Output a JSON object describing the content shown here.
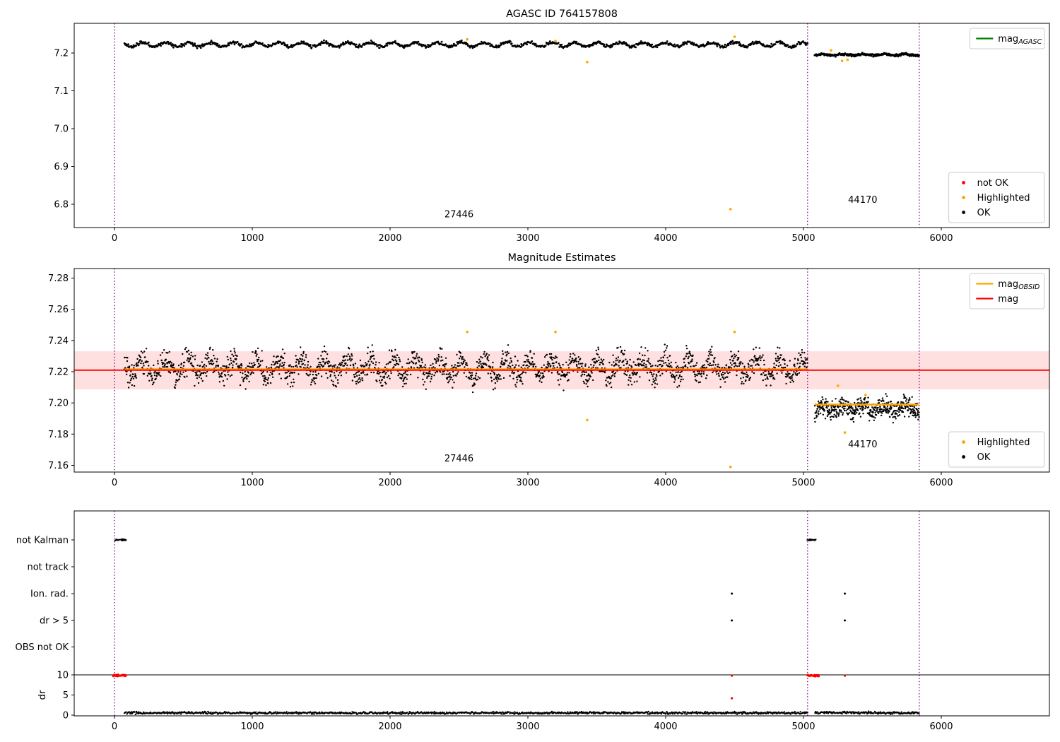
{
  "figure": {
    "background": "#ffffff"
  },
  "chart_data": [
    {
      "id": "agasc-mag",
      "type": "scatter",
      "title": "AGASC ID 764157808",
      "xlim": [
        -292,
        6785
      ],
      "ylim": [
        6.738,
        7.279
      ],
      "xticks": [
        0,
        1000,
        2000,
        3000,
        4000,
        5000,
        6000
      ],
      "yticks": [
        6.8,
        6.9,
        7.0,
        7.1,
        7.2
      ],
      "colors": {
        "ok": "#000000",
        "highlighted": "#ffa500",
        "not_ok": "#ff0000",
        "agasc_line": "#008000",
        "vline": "#800080"
      },
      "vlines": {
        "x": [
          0,
          5030,
          5840
        ],
        "color": "#800080",
        "style": "dotted"
      },
      "ok_segments": [
        {
          "obsid": "27446",
          "x_start": 70,
          "x_end": 5030,
          "n": 1050,
          "y_mean": 7.2225,
          "wave_amp": 0.0055,
          "wave_period": 165,
          "spread": 0.0065,
          "r": 1.4,
          "seed": 11
        },
        {
          "obsid": "44170",
          "x_start": 5080,
          "x_end": 5840,
          "n": 280,
          "y_mean": 7.1955,
          "wave_amp": 0.002,
          "wave_period": 150,
          "spread": 0.005,
          "r": 1.4,
          "seed": 12
        }
      ],
      "highlighted_points": [
        [
          2560,
          7.236
        ],
        [
          3200,
          7.232
        ],
        [
          3430,
          7.176
        ],
        [
          4470,
          6.787
        ],
        [
          4500,
          7.243
        ],
        [
          5200,
          7.207
        ],
        [
          5280,
          7.179
        ],
        [
          5320,
          7.182
        ]
      ],
      "annotations": [
        {
          "x": 2500,
          "y": 6.765,
          "text": "27446"
        },
        {
          "x": 5430,
          "y": 6.804,
          "text": "44170"
        }
      ],
      "legend_upper": {
        "items": [
          {
            "marker": "line",
            "color": "#008000",
            "label": "mag",
            "sub": "AGASC"
          }
        ]
      },
      "legend_lower": {
        "items": [
          {
            "marker": "dot",
            "color": "#ff0000",
            "label": "not OK"
          },
          {
            "marker": "dot",
            "color": "#ffa500",
            "label": "Highlighted"
          },
          {
            "marker": "dot",
            "color": "#000000",
            "label": "OK"
          }
        ]
      }
    },
    {
      "id": "mag-estimates",
      "type": "scatter",
      "title": "Magnitude Estimates",
      "xlim": [
        -292,
        6785
      ],
      "ylim": [
        7.156,
        7.286
      ],
      "xticks": [
        0,
        1000,
        2000,
        3000,
        4000,
        5000,
        6000
      ],
      "yticks": [
        7.16,
        7.18,
        7.2,
        7.22,
        7.24,
        7.26,
        7.28
      ],
      "colors": {
        "ok": "#000000",
        "highlighted": "#ffa500",
        "mag": "#ff0000",
        "obsid": "#ffa500",
        "vline": "#800080"
      },
      "vlines": {
        "x": [
          0,
          5030,
          5840
        ],
        "color": "#800080",
        "style": "dotted"
      },
      "mag_line": 7.221,
      "band": {
        "y_low": 7.2087,
        "y_high": 7.2331,
        "color": "rgba(255,0,0,0.12)"
      },
      "obsid_lines": [
        {
          "obsid": "27446",
          "x_start": 70,
          "x_end": 5030,
          "y": 7.2215
        },
        {
          "obsid": "44170",
          "x_start": 5080,
          "x_end": 5840,
          "y": 7.199
        }
      ],
      "ok_segments": [
        {
          "obsid": "27446",
          "x_start": 70,
          "x_end": 5030,
          "n": 2100,
          "y_mean": 7.2225,
          "wave_amp": 0.005,
          "wave_period": 165,
          "spread": 0.012,
          "r": 1.2,
          "seed": 21
        },
        {
          "obsid": "44170",
          "x_start": 5080,
          "x_end": 5840,
          "n": 480,
          "y_mean": 7.1965,
          "wave_amp": 0.002,
          "wave_period": 150,
          "spread": 0.009,
          "r": 1.2,
          "seed": 22
        }
      ],
      "highlighted_points": [
        [
          2560,
          7.2455
        ],
        [
          3200,
          7.2455
        ],
        [
          3430,
          7.189
        ],
        [
          4470,
          7.159
        ],
        [
          4500,
          7.2455
        ],
        [
          5250,
          7.211
        ],
        [
          5300,
          7.181
        ],
        [
          5450,
          7.205
        ]
      ],
      "annotations": [
        {
          "x": 2500,
          "y": 7.1625,
          "text": "27446"
        },
        {
          "x": 5430,
          "y": 7.1715,
          "text": "44170"
        }
      ],
      "legend_upper": {
        "items": [
          {
            "marker": "line",
            "color": "#ffa500",
            "label": "mag",
            "sub": "OBSID"
          },
          {
            "marker": "line",
            "color": "#ff0000",
            "label": "mag"
          }
        ]
      },
      "legend_lower": {
        "items": [
          {
            "marker": "dot",
            "color": "#ffa500",
            "label": "Highlighted"
          },
          {
            "marker": "dot",
            "color": "#000000",
            "label": "OK"
          }
        ]
      }
    },
    {
      "id": "flags",
      "type": "categorical-scatter",
      "rows": [
        "not Kalman",
        "not track",
        "Ion. rad.",
        "dr > 5",
        "OBS not OK"
      ],
      "dr_axis": {
        "label": "dr",
        "ticks": [
          0,
          5,
          10
        ],
        "hline": 10
      },
      "xticks": [
        0,
        1000,
        2000,
        3000,
        4000,
        5000,
        6000
      ],
      "vlines": {
        "x": [
          0,
          5030,
          5840
        ],
        "color": "#800080",
        "style": "dotted"
      },
      "row_marks": [
        {
          "row": "not Kalman",
          "clusters": [
            {
              "x_start": 0,
              "x_end": 85,
              "n": 20,
              "seed": 31
            },
            {
              "x_start": 5030,
              "x_end": 5095,
              "n": 14,
              "seed": 32
            }
          ],
          "points": []
        },
        {
          "row": "not track",
          "clusters": [],
          "points": []
        },
        {
          "row": "Ion. rad.",
          "clusters": [],
          "points": [
            4480,
            5300
          ]
        },
        {
          "row": "dr > 5",
          "clusters": [],
          "points": [
            4480,
            5300
          ]
        },
        {
          "row": "OBS not OK",
          "clusters": [],
          "points": []
        }
      ],
      "dr_ok_segments": [
        {
          "x_start": 70,
          "x_end": 5030,
          "n": 1080,
          "y_mean": 0.55,
          "spread": 0.4,
          "r": 1.2,
          "seed": 33
        },
        {
          "x_start": 5080,
          "x_end": 5840,
          "n": 180,
          "y_mean": 0.6,
          "spread": 0.4,
          "r": 1.2,
          "seed": 36
        }
      ],
      "dr_not_ok": {
        "color": "#ff0000",
        "clusters": [
          {
            "x_start": -10,
            "x_end": 85,
            "n": 26,
            "y_mean": 9.85,
            "seed": 34
          },
          {
            "x_start": 5030,
            "x_end": 5110,
            "n": 20,
            "y_mean": 9.85,
            "seed": 35
          }
        ],
        "points": [
          [
            4480,
            9.8
          ],
          [
            4480,
            4.2
          ],
          [
            5300,
            9.8
          ]
        ]
      }
    }
  ]
}
